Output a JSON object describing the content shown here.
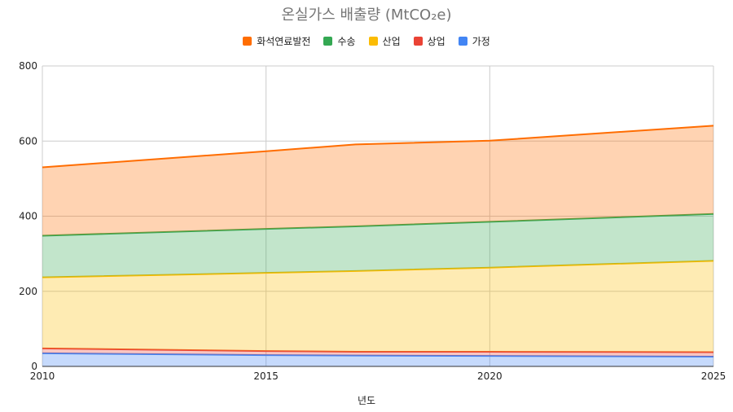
{
  "chart_data": {
    "type": "area",
    "stacked": true,
    "title": "온실가스 배출량 (MtCO₂e)",
    "xlabel": "년도",
    "ylabel": "",
    "x": [
      2010,
      2015,
      2017,
      2020,
      2025
    ],
    "xticks": [
      2010,
      2015,
      2020,
      2025
    ],
    "ylim": [
      0,
      800
    ],
    "yticks": [
      0,
      200,
      400,
      600,
      800
    ],
    "grid": true,
    "legend_position": "top",
    "series": [
      {
        "name": "가정",
        "color": "#4285f4",
        "values": [
          35,
          30,
          29,
          28,
          26
        ]
      },
      {
        "name": "상업",
        "color": "#ea4335",
        "values": [
          13,
          11,
          10,
          11,
          12
        ]
      },
      {
        "name": "산업",
        "color": "#fbbc04",
        "values": [
          189,
          208,
          215,
          224,
          243
        ]
      },
      {
        "name": "수송",
        "color": "#34a853",
        "values": [
          111,
          117,
          119,
          122,
          125
        ]
      },
      {
        "name": "화석연료발전",
        "color": "#ff6d01",
        "values": [
          182,
          207,
          218,
          216,
          235
        ]
      }
    ]
  }
}
